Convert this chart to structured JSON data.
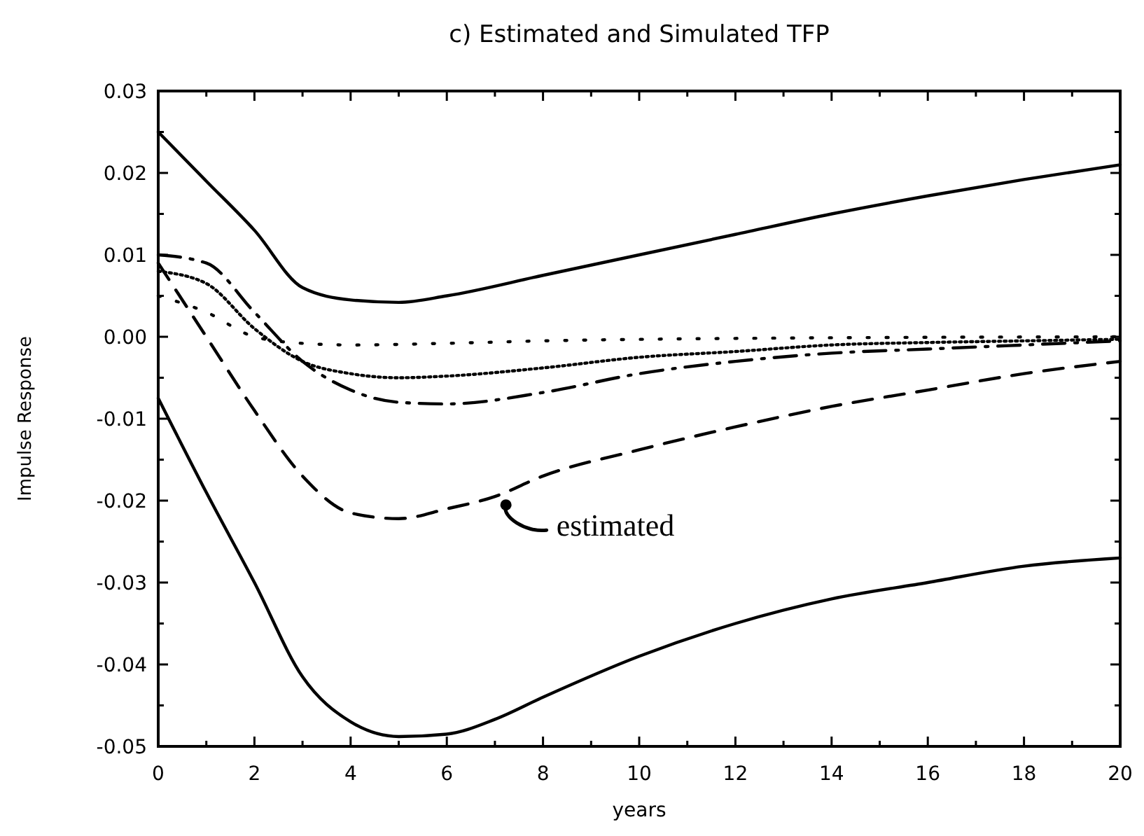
{
  "chart_data": {
    "type": "line",
    "title": "c) Estimated and Simulated TFP",
    "xlabel": "years",
    "ylabel": "Impulse Response",
    "xlim": [
      0,
      20
    ],
    "xticks": [
      0,
      {
        "value": 1,
        "label": null
      },
      2,
      {
        "value": 3,
        "label": null
      },
      4,
      {
        "value": 5,
        "label": null
      },
      6,
      {
        "value": 7,
        "label": null
      },
      8,
      {
        "value": 9,
        "label": null
      },
      10,
      {
        "value": 11,
        "label": null
      },
      12,
      {
        "value": 13,
        "label": null
      },
      14,
      {
        "value": 15,
        "label": null
      },
      16,
      {
        "value": 17,
        "label": null
      },
      18,
      {
        "value": 19,
        "label": null
      },
      20
    ],
    "ylim": [
      -0.05,
      0.03
    ],
    "yticks": [
      -0.05,
      {
        "value": -0.045,
        "label": null
      },
      -0.04,
      {
        "value": -0.035,
        "label": null
      },
      -0.03,
      {
        "value": -0.025,
        "label": null
      },
      -0.02,
      {
        "value": -0.015,
        "label": null
      },
      -0.01,
      {
        "value": -0.005,
        "label": null
      },
      {
        "value": 0,
        "label": "0.00"
      },
      {
        "value": 0.005,
        "label": null
      },
      0.01,
      {
        "value": 0.015,
        "label": null
      },
      0.02,
      {
        "value": 0.025,
        "label": null
      },
      0.03
    ],
    "grid": false,
    "marker": "none",
    "annotations": [
      {
        "text": "estimated",
        "x": 7.2,
        "y": -0.0195
      }
    ],
    "series": [
      {
        "color": "#000000",
        "line_style": "solid",
        "x": [
          0,
          1,
          2,
          3,
          4,
          5,
          6,
          8,
          10,
          12,
          14,
          16,
          18,
          20
        ],
        "values": [
          0.025,
          0.019,
          0.013,
          0.006,
          0.0045,
          0.0042,
          0.005,
          0.0075,
          0.01,
          0.0125,
          0.015,
          0.0172,
          0.0192,
          0.021
        ]
      },
      {
        "color": "#000000",
        "line_style": "solid",
        "x": [
          0,
          1,
          2,
          3,
          4,
          5,
          6,
          7,
          8,
          10,
          12,
          14,
          16,
          18,
          20
        ],
        "values": [
          -0.0075,
          -0.019,
          -0.03,
          -0.0415,
          -0.047,
          -0.0488,
          -0.0485,
          -0.0467,
          -0.044,
          -0.039,
          -0.035,
          -0.032,
          -0.03,
          -0.028,
          -0.027
        ]
      },
      {
        "color": "#000000",
        "line_style": "dashed",
        "x": [
          0,
          1,
          2,
          3,
          4,
          5,
          6,
          7,
          8,
          10,
          12,
          14,
          16,
          18,
          20
        ],
        "values": [
          0.009,
          0.0,
          -0.009,
          -0.017,
          -0.0215,
          -0.0222,
          -0.021,
          -0.0195,
          -0.017,
          -0.0138,
          -0.011,
          -0.0085,
          -0.0065,
          -0.0045,
          -0.003
        ]
      },
      {
        "color": "#000000",
        "line_style": "dashdot",
        "x": [
          0,
          1,
          2,
          3,
          4,
          5,
          6,
          8,
          10,
          12,
          14,
          16,
          18,
          20
        ],
        "values": [
          0.01,
          0.009,
          0.003,
          -0.003,
          -0.0065,
          -0.008,
          -0.0082,
          -0.0068,
          -0.0045,
          -0.003,
          -0.002,
          -0.0015,
          -0.001,
          -0.0005
        ]
      },
      {
        "color": "#000000",
        "line_style": "dotted",
        "x": [
          0,
          1,
          2,
          3,
          4,
          5,
          6,
          8,
          10,
          12,
          14,
          16,
          18,
          20
        ],
        "values": [
          0.008,
          0.0065,
          0.001,
          -0.003,
          -0.0045,
          -0.005,
          -0.0048,
          -0.0038,
          -0.0025,
          -0.0018,
          -0.001,
          -0.0007,
          -0.0005,
          -0.0003
        ]
      },
      {
        "color": "#000000",
        "line_style": "sparse_dotted",
        "x": [
          0,
          1,
          2,
          3,
          4,
          6,
          8,
          12,
          20
        ],
        "values": [
          0.005,
          0.003,
          0.0,
          -0.0008,
          -0.001,
          -0.0008,
          -0.0005,
          -0.0002,
          0.0
        ]
      }
    ]
  }
}
